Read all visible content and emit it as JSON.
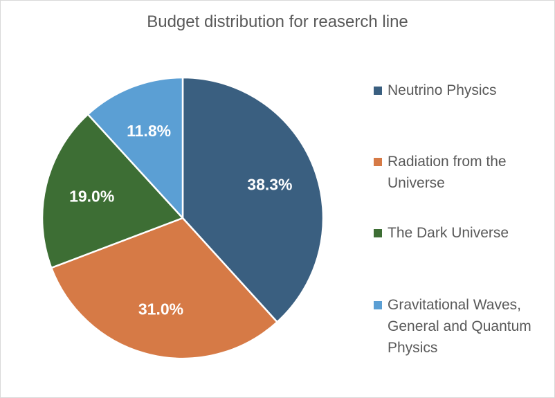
{
  "chart_data": {
    "type": "pie",
    "title": "Budget distribution for reaserch line",
    "categories": [
      "Neutrino Physics",
      "Radiation from the Universe",
      "The Dark Universe",
      "Gravitational Waves, General and Quantum Physics"
    ],
    "values": [
      38.3,
      31.0,
      19.0,
      11.8
    ],
    "labels": [
      "38.3%",
      "31.0%",
      "19.0%",
      "11.8%"
    ],
    "colors": [
      "#3a5f80",
      "#d67a46",
      "#3d6e34",
      "#5b9fd4"
    ],
    "legend_position": "right",
    "start_angle": "12 o'clock",
    "direction": "clockwise"
  }
}
